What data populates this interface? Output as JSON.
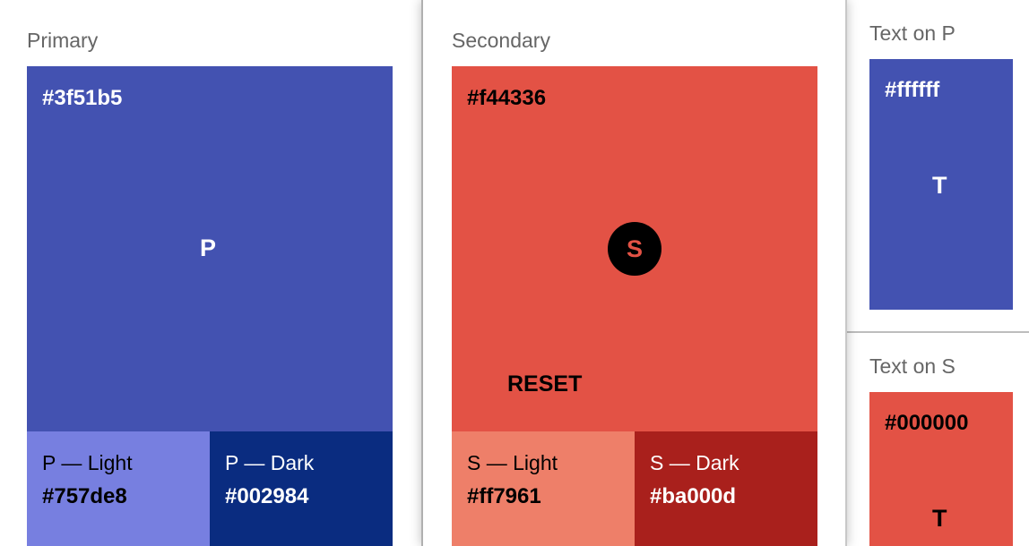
{
  "primary": {
    "title": "Primary",
    "hex": "#3f51b5",
    "letter": "P",
    "color": "#4352b1",
    "light": {
      "label": "P — Light",
      "hex": "#757de8",
      "color": "#777fe0"
    },
    "dark": {
      "label": "P — Dark",
      "hex": "#002984",
      "color": "#0a2c80"
    }
  },
  "secondary": {
    "title": "Secondary",
    "hex": "#f44336",
    "letter": "S",
    "color": "#e35245",
    "reset_label": "RESET",
    "light": {
      "label": "S — Light",
      "hex": "#ff7961",
      "color": "#ee7f69"
    },
    "dark": {
      "label": "S — Dark",
      "hex": "#ba000d",
      "color": "#a9201c"
    }
  },
  "text_on_p": {
    "title": "Text on P",
    "hex": "#ffffff",
    "letter": "T"
  },
  "text_on_s": {
    "title": "Text on S",
    "hex": "#000000",
    "letter": "T"
  }
}
